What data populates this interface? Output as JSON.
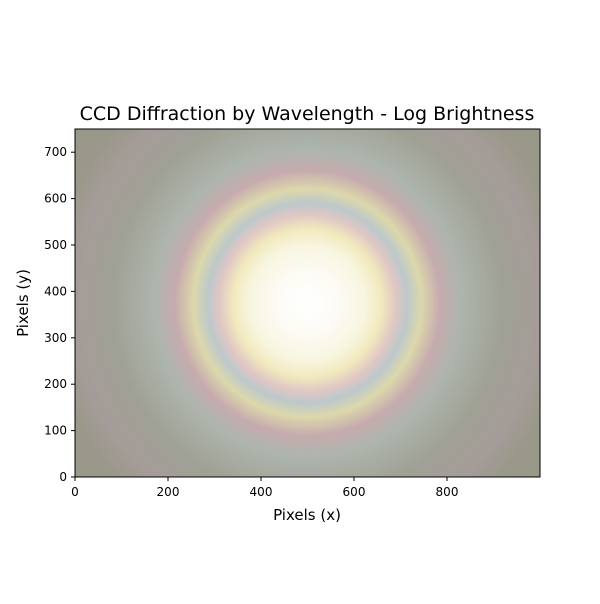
{
  "chart_data": {
    "type": "heatmap",
    "title": "CCD Diffraction by Wavelength - Log Brightness",
    "xlabel": "Pixels (x)",
    "ylabel": "Pixels (y)",
    "xlim": [
      0,
      1000
    ],
    "ylim": [
      0,
      750
    ],
    "x_ticks": [
      0,
      200,
      400,
      600,
      800
    ],
    "y_ticks": [
      0,
      100,
      200,
      300,
      400,
      500,
      600,
      700
    ],
    "grid": false,
    "legend": "none",
    "pattern": {
      "kind": "radial-airy-rings",
      "center": [
        500,
        375
      ],
      "scale": "log",
      "core_radius": 125,
      "rings": [
        {
          "radius": 160,
          "color": "#f1e9bd"
        },
        {
          "radius": 190,
          "color": "#e0c7c4"
        },
        {
          "radius": 215,
          "color": "#bdc8cb"
        },
        {
          "radius": 245,
          "color": "#dcd8ab"
        },
        {
          "radius": 285,
          "color": "#c6abae"
        },
        {
          "radius": 330,
          "color": "#adb5ad"
        }
      ],
      "core_color": "#ffffff",
      "background_color": "#999889"
    }
  }
}
